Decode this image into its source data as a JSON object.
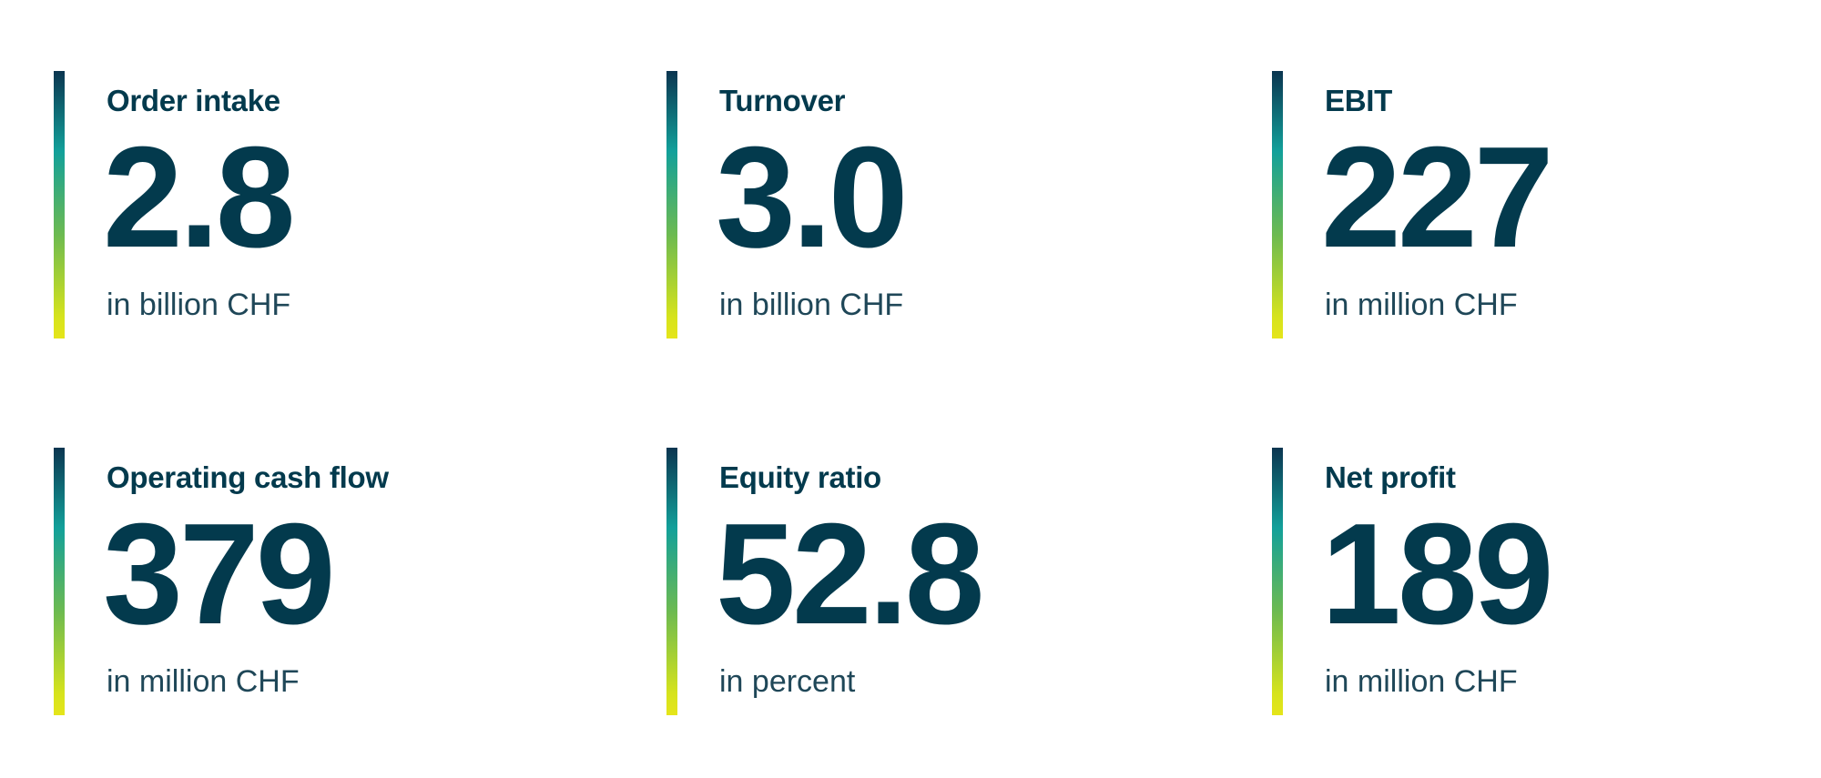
{
  "kpis": [
    {
      "label": "Order intake",
      "value": "2.8",
      "unit": "in billion CHF"
    },
    {
      "label": "Turnover",
      "value": "3.0",
      "unit": "in billion CHF"
    },
    {
      "label": "EBIT",
      "value": "227",
      "unit": "in million CHF"
    },
    {
      "label": "Operating cash flow",
      "value": "379",
      "unit": "in million CHF"
    },
    {
      "label": "Equity ratio",
      "value": "52.8",
      "unit": "in percent"
    },
    {
      "label": "Net profit",
      "value": "189",
      "unit": "in million CHF"
    }
  ]
}
